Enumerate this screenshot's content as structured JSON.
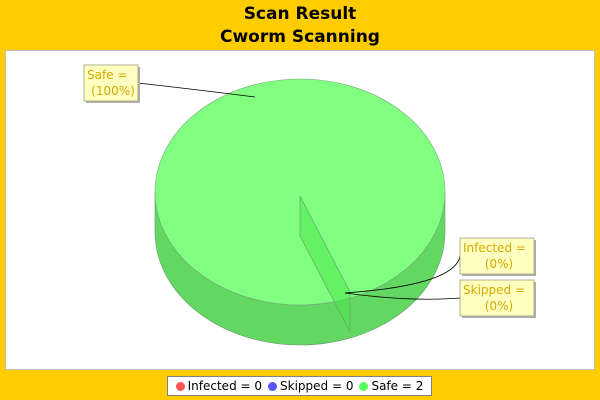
{
  "chart_data": {
    "type": "pie",
    "title": "Scan Result",
    "subtitle": "Cworm Scanning",
    "slices": [
      {
        "name": "Infected",
        "value": 0,
        "percent": "0%",
        "color": "#ff5555"
      },
      {
        "name": "Skipped",
        "value": 0,
        "percent": "0%",
        "color": "#5555ff"
      },
      {
        "name": "Safe",
        "value": 2,
        "percent": "100%",
        "color": "#55ff55"
      }
    ],
    "labels": [
      {
        "name": "Safe",
        "line1": "Safe  =",
        "line2": "(100%)"
      },
      {
        "name": "Infected",
        "line1": "Infected  =",
        "line2": "(0%)"
      },
      {
        "name": "Skipped",
        "line1": "Skipped  =",
        "line2": "(0%)"
      }
    ],
    "legend": [
      {
        "text": "Infected  = 0",
        "color": "#ff5555"
      },
      {
        "text": "Skipped  = 0",
        "color": "#5555ff"
      },
      {
        "text": "Safe  = 2",
        "color": "#55ff55"
      }
    ],
    "legend_position": "bottom"
  },
  "colors": {
    "background": "#ffcc00",
    "plot_background": "#ffffff",
    "label_background": "#ffffc0",
    "label_text": "#d4a800"
  }
}
